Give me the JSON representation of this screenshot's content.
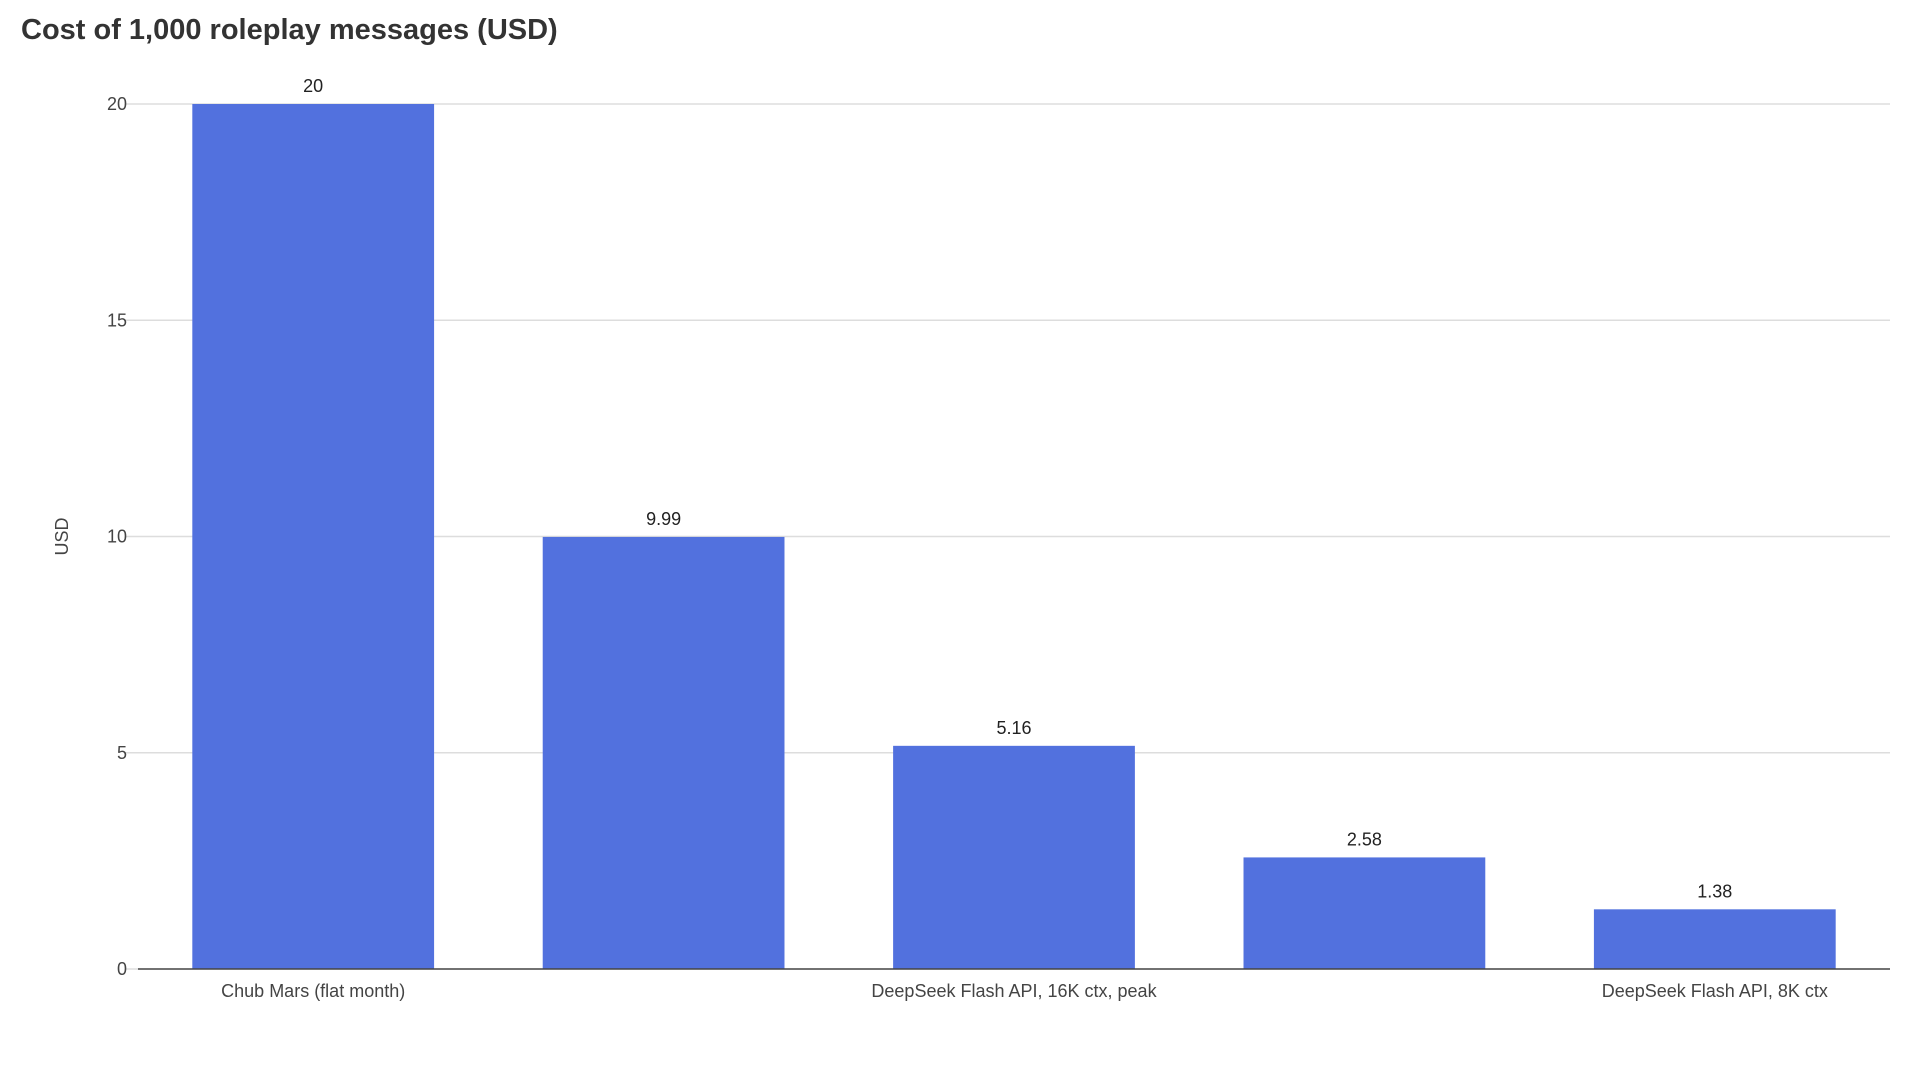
{
  "chart_data": {
    "type": "bar",
    "title": "Cost of 1,000 roleplay messages (USD)",
    "xlabel": "",
    "ylabel": "USD",
    "ylim": [
      0,
      20
    ],
    "yticks": [
      0,
      5,
      10,
      15,
      20
    ],
    "categories": [
      "Chub Mars (flat month)",
      "",
      "DeepSeek Flash API, 16K ctx, peak",
      "",
      "DeepSeek Flash API, 8K ctx"
    ],
    "values": [
      20,
      9.99,
      5.16,
      2.58,
      1.38
    ],
    "data_labels": [
      "20",
      "9.99",
      "5.16",
      "2.58",
      "1.38"
    ],
    "grid": true,
    "legend": "none",
    "colors": {
      "bar": "#5271DE",
      "grid": "#DDDDDD",
      "axis": "#444444",
      "tick_text": "#444444",
      "label_text": "#222222",
      "title_text": "#333333"
    }
  }
}
